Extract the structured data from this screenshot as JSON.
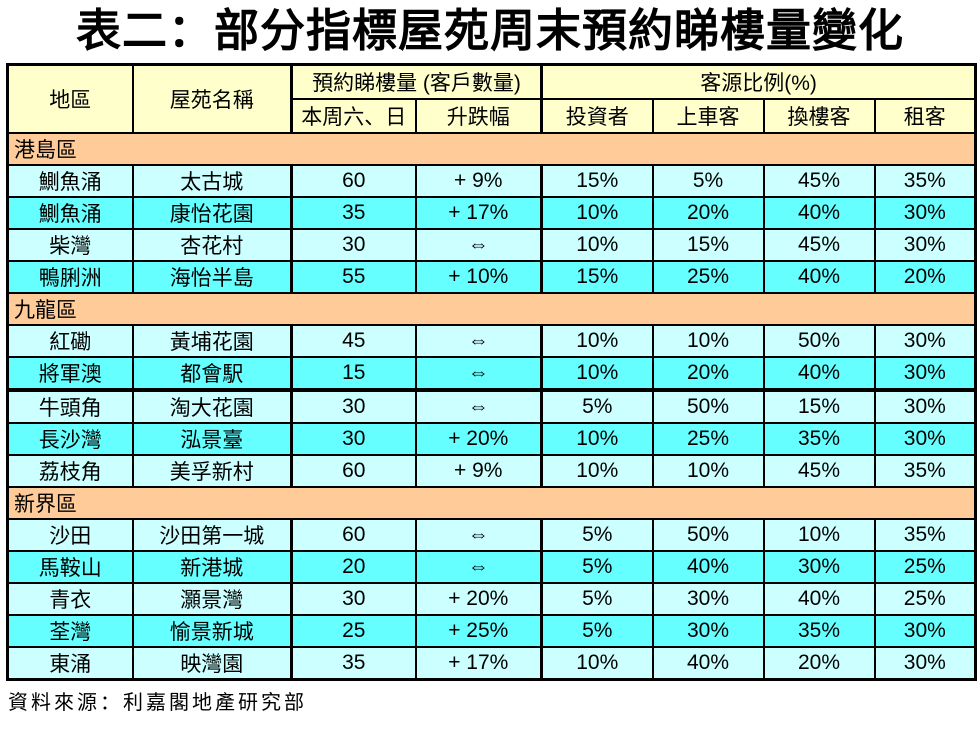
{
  "title": "表二：部分指標屋苑周末預約睇樓量變化",
  "table": {
    "header": {
      "col_district": "地區",
      "col_estate": "屋苑名稱",
      "group_bookings": "預約睇樓量 (客戶數量)",
      "group_sources": "客源比例(%)",
      "col_weekend": "本周六、日",
      "col_change": "升跌幅",
      "col_investor": "投資者",
      "col_firsttime": "上車客",
      "col_upgrader": "換樓客",
      "col_tenant": "租客"
    },
    "sections": [
      {
        "name": "港島區",
        "rows": [
          {
            "district": "鰂魚涌",
            "estate": "太古城",
            "weekend": "60",
            "change": "+ 9%",
            "investor": "15%",
            "firsttime": "5%",
            "upgrader": "45%",
            "tenant": "35%"
          },
          {
            "district": "鰂魚涌",
            "estate": "康怡花園",
            "weekend": "35",
            "change": "+ 17%",
            "investor": "10%",
            "firsttime": "20%",
            "upgrader": "40%",
            "tenant": "30%"
          },
          {
            "district": "柴灣",
            "estate": "杏花村",
            "weekend": "30",
            "change": "⇔",
            "investor": "10%",
            "firsttime": "15%",
            "upgrader": "45%",
            "tenant": "30%"
          },
          {
            "district": "鴨脷洲",
            "estate": "海怡半島",
            "weekend": "55",
            "change": "+ 10%",
            "investor": "15%",
            "firsttime": "25%",
            "upgrader": "40%",
            "tenant": "20%"
          }
        ]
      },
      {
        "name": "九龍區",
        "rows": [
          {
            "district": "紅磡",
            "estate": "黃埔花園",
            "weekend": "45",
            "change": "⇔",
            "investor": "10%",
            "firsttime": "10%",
            "upgrader": "50%",
            "tenant": "30%"
          },
          {
            "district": "將軍澳",
            "estate": "都會駅",
            "weekend": "15",
            "change": "⇔",
            "investor": "10%",
            "firsttime": "20%",
            "upgrader": "40%",
            "tenant": "30%"
          },
          {
            "district": "牛頭角",
            "estate": "淘大花園",
            "weekend": "30",
            "change": "⇔",
            "investor": "5%",
            "firsttime": "50%",
            "upgrader": "15%",
            "tenant": "30%",
            "divider_above": true
          },
          {
            "district": "長沙灣",
            "estate": "泓景臺",
            "weekend": "30",
            "change": "+ 20%",
            "investor": "10%",
            "firsttime": "25%",
            "upgrader": "35%",
            "tenant": "30%"
          },
          {
            "district": "荔枝角",
            "estate": "美孚新村",
            "weekend": "60",
            "change": "+ 9%",
            "investor": "10%",
            "firsttime": "10%",
            "upgrader": "45%",
            "tenant": "35%"
          }
        ]
      },
      {
        "name": "新界區",
        "rows": [
          {
            "district": "沙田",
            "estate": "沙田第一城",
            "weekend": "60",
            "change": "⇔",
            "investor": "5%",
            "firsttime": "50%",
            "upgrader": "10%",
            "tenant": "35%"
          },
          {
            "district": "馬鞍山",
            "estate": "新港城",
            "weekend": "20",
            "change": "⇔",
            "investor": "5%",
            "firsttime": "40%",
            "upgrader": "30%",
            "tenant": "25%"
          },
          {
            "district": "青衣",
            "estate": "灝景灣",
            "weekend": "30",
            "change": "+ 20%",
            "investor": "5%",
            "firsttime": "30%",
            "upgrader": "40%",
            "tenant": "25%"
          },
          {
            "district": "荃灣",
            "estate": "愉景新城",
            "weekend": "25",
            "change": "+ 25%",
            "investor": "5%",
            "firsttime": "30%",
            "upgrader": "35%",
            "tenant": "30%"
          },
          {
            "district": "東涌",
            "estate": "映灣園",
            "weekend": "35",
            "change": "+ 17%",
            "investor": "10%",
            "firsttime": "40%",
            "upgrader": "20%",
            "tenant": "30%"
          }
        ]
      }
    ]
  },
  "footer": {
    "source": "資料來源：利嘉閣地產研究部"
  },
  "colors": {
    "header_bg": "#FFFFCC",
    "section_bg": "#FFCC99",
    "row_pale_bg": "#CCFFFF",
    "row_bright_bg": "#66FFFF",
    "border": "#000000",
    "text": "#000000"
  }
}
